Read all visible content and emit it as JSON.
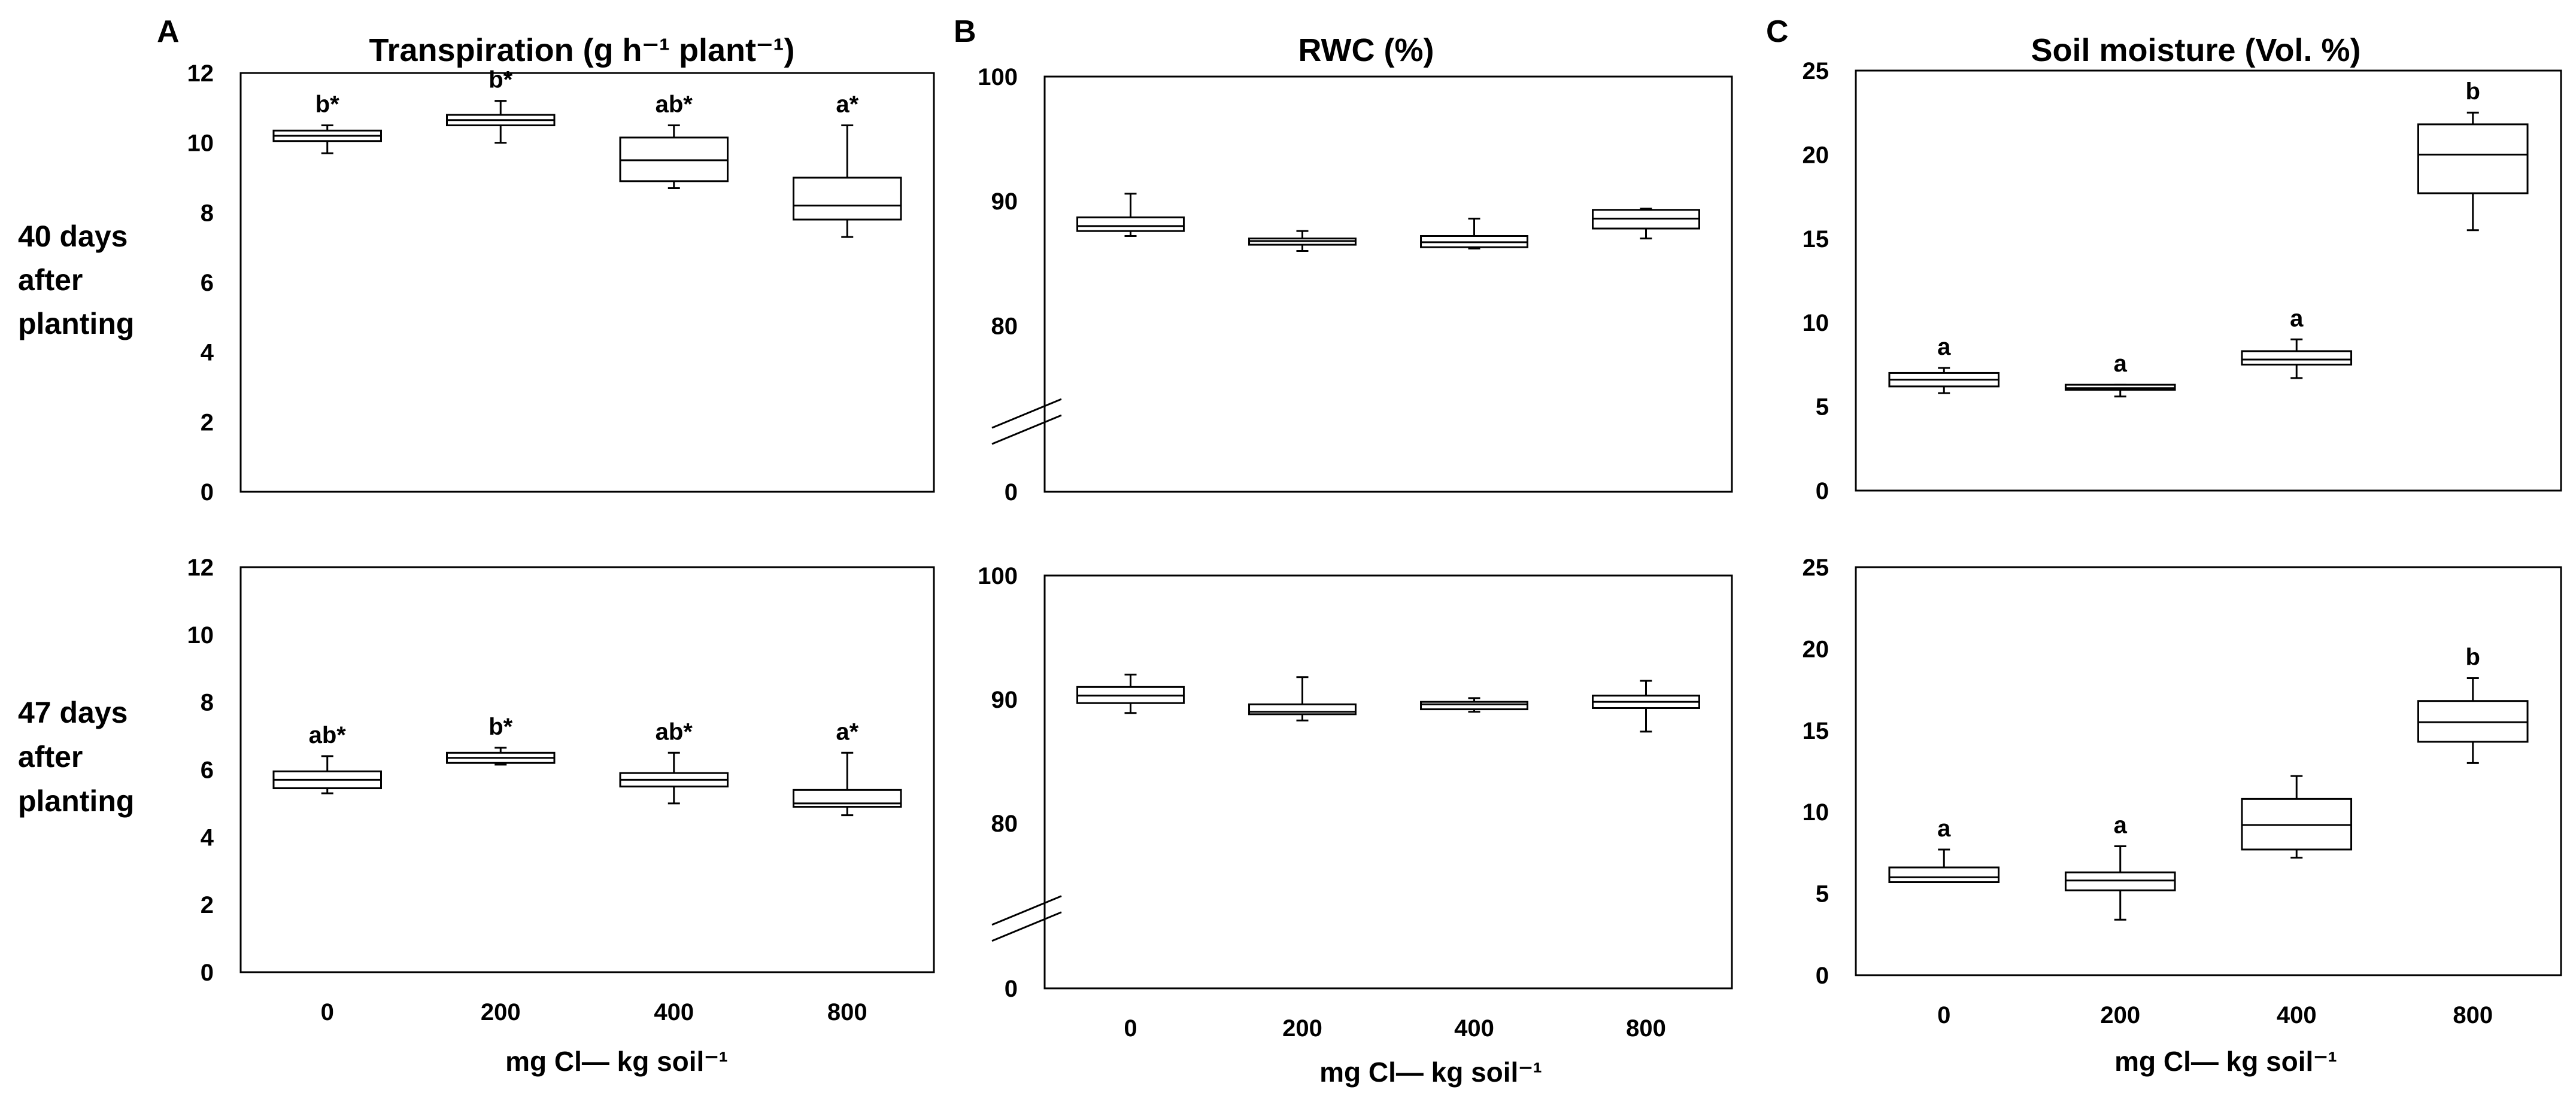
{
  "figure": {
    "panel_letters": [
      "A",
      "B",
      "C"
    ],
    "row_labels": [
      [
        "40 days",
        "after",
        "planting"
      ],
      [
        "47 days",
        "after",
        "planting"
      ]
    ],
    "x_axis_label": "mg Cl— kg soil⁻¹"
  },
  "chart_data": [
    {
      "type": "box",
      "panel": "A",
      "title": "Transpiration (g h⁻¹ plant⁻¹)",
      "row": "40 days after planting",
      "categories": [
        "0",
        "200",
        "400",
        "800"
      ],
      "ylim": [
        0,
        12
      ],
      "yticks": [
        0,
        2,
        4,
        6,
        8,
        10,
        12
      ],
      "boxes": [
        {
          "min": 9.7,
          "q1": 10.05,
          "median": 10.2,
          "q3": 10.35,
          "max": 10.5
        },
        {
          "min": 10.0,
          "q1": 10.5,
          "median": 10.65,
          "q3": 10.8,
          "max": 11.2
        },
        {
          "min": 8.7,
          "q1": 8.9,
          "median": 9.5,
          "q3": 10.15,
          "max": 10.5
        },
        {
          "min": 7.3,
          "q1": 7.8,
          "median": 8.2,
          "q3": 9.0,
          "max": 10.5
        }
      ],
      "labels": [
        "b*",
        "b*",
        "ab*",
        "a*"
      ]
    },
    {
      "type": "box",
      "panel": "B",
      "title": "RWC (%)",
      "row": "40 days after planting",
      "categories": [
        "0",
        "200",
        "400",
        "800"
      ],
      "ylim": [
        0,
        100
      ],
      "axis_break": [
        70,
        80
      ],
      "yticks": [
        0,
        80,
        90,
        100
      ],
      "boxes": [
        {
          "min": 87.2,
          "q1": 87.6,
          "median": 88.0,
          "q3": 88.7,
          "max": 90.6
        },
        {
          "min": 86.0,
          "q1": 86.5,
          "median": 86.8,
          "q3": 87.0,
          "max": 87.6
        },
        {
          "min": 86.2,
          "q1": 86.3,
          "median": 86.7,
          "q3": 87.2,
          "max": 88.6
        },
        {
          "min": 87.0,
          "q1": 87.8,
          "median": 88.6,
          "q3": 89.3,
          "max": 89.4
        }
      ],
      "labels": [
        "",
        "",
        "",
        ""
      ]
    },
    {
      "type": "box",
      "panel": "C",
      "title": "Soil moisture (Vol. %)",
      "row": "40 days after planting",
      "categories": [
        "0",
        "200",
        "400",
        "800"
      ],
      "ylim": [
        0,
        25
      ],
      "yticks": [
        0,
        5,
        10,
        15,
        20,
        25
      ],
      "boxes": [
        {
          "min": 5.8,
          "q1": 6.2,
          "median": 6.6,
          "q3": 7.0,
          "max": 7.3
        },
        {
          "min": 5.6,
          "q1": 6.0,
          "median": 6.1,
          "q3": 6.3,
          "max": 6.3
        },
        {
          "min": 6.7,
          "q1": 7.5,
          "median": 7.8,
          "q3": 8.3,
          "max": 9.0
        },
        {
          "min": 15.5,
          "q1": 17.7,
          "median": 20.0,
          "q3": 21.8,
          "max": 22.5
        }
      ],
      "labels": [
        "a",
        "a",
        "a",
        "b"
      ]
    },
    {
      "type": "box",
      "panel": "A",
      "title": "",
      "row": "47 days after planting",
      "categories": [
        "0",
        "200",
        "400",
        "800"
      ],
      "ylim": [
        0,
        12
      ],
      "yticks": [
        0,
        2,
        4,
        6,
        8,
        10,
        12
      ],
      "boxes": [
        {
          "min": 5.3,
          "q1": 5.45,
          "median": 5.7,
          "q3": 5.95,
          "max": 6.4
        },
        {
          "min": 6.15,
          "q1": 6.2,
          "median": 6.35,
          "q3": 6.5,
          "max": 6.65
        },
        {
          "min": 5.0,
          "q1": 5.5,
          "median": 5.7,
          "q3": 5.9,
          "max": 6.5
        },
        {
          "min": 4.65,
          "q1": 4.9,
          "median": 5.0,
          "q3": 5.4,
          "max": 6.5
        }
      ],
      "labels": [
        "ab*",
        "b*",
        "ab*",
        "a*"
      ]
    },
    {
      "type": "box",
      "panel": "B",
      "title": "",
      "row": "47 days after planting",
      "categories": [
        "0",
        "200",
        "400",
        "800"
      ],
      "ylim": [
        0,
        100
      ],
      "axis_break": [
        70,
        80
      ],
      "yticks": [
        0,
        80,
        90,
        100
      ],
      "boxes": [
        {
          "min": 88.9,
          "q1": 89.7,
          "median": 90.3,
          "q3": 91.0,
          "max": 92.0
        },
        {
          "min": 88.3,
          "q1": 88.8,
          "median": 89.0,
          "q3": 89.6,
          "max": 91.8
        },
        {
          "min": 89.0,
          "q1": 89.2,
          "median": 89.6,
          "q3": 89.8,
          "max": 90.1
        },
        {
          "min": 87.4,
          "q1": 89.3,
          "median": 89.8,
          "q3": 90.3,
          "max": 91.5
        }
      ],
      "labels": [
        "",
        "",
        "",
        ""
      ]
    },
    {
      "type": "box",
      "panel": "C",
      "title": "",
      "row": "47 days after planting",
      "categories": [
        "0",
        "200",
        "400",
        "800"
      ],
      "ylim": [
        0,
        25
      ],
      "yticks": [
        0,
        5,
        10,
        15,
        20,
        25
      ],
      "boxes": [
        {
          "min": 5.7,
          "q1": 5.7,
          "median": 6.0,
          "q3": 6.6,
          "max": 7.7
        },
        {
          "min": 3.4,
          "q1": 5.2,
          "median": 5.8,
          "q3": 6.3,
          "max": 7.9
        },
        {
          "min": 7.2,
          "q1": 7.7,
          "median": 9.2,
          "q3": 10.8,
          "max": 12.2
        },
        {
          "min": 13.0,
          "q1": 14.3,
          "median": 15.5,
          "q3": 16.8,
          "max": 18.2
        }
      ],
      "labels": [
        "a",
        "a",
        "",
        "b"
      ]
    }
  ]
}
